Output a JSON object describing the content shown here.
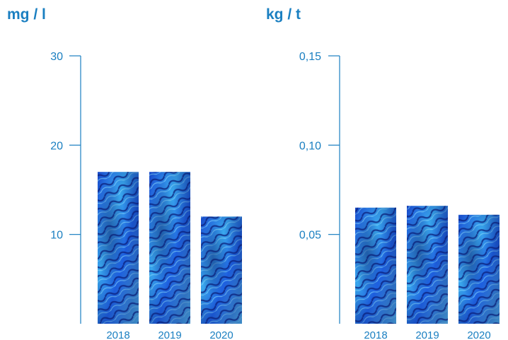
{
  "chart_data": [
    {
      "type": "bar",
      "unit_label": "mg / l",
      "categories": [
        "2018",
        "2019",
        "2020"
      ],
      "values": [
        17,
        17,
        12
      ],
      "ylim": [
        0,
        30
      ],
      "yticks": [
        10,
        20,
        30
      ],
      "ytick_labels": [
        "10",
        "20",
        "30"
      ],
      "bar_fill": "textured-blue",
      "colors": {
        "axis": "#1a7fc1",
        "bar_light": "#4fc3f7",
        "bar_dark": "#0d2b8a"
      }
    },
    {
      "type": "bar",
      "unit_label": "kg / t",
      "categories": [
        "2018",
        "2019",
        "2020"
      ],
      "values": [
        0.065,
        0.066,
        0.061
      ],
      "ylim": [
        0,
        0.15
      ],
      "yticks": [
        0.05,
        0.1,
        0.15
      ],
      "ytick_labels": [
        "0,05",
        "0,10",
        "0,15"
      ],
      "bar_fill": "textured-blue",
      "colors": {
        "axis": "#1a7fc1",
        "bar_light": "#4fc3f7",
        "bar_dark": "#0d2b8a"
      }
    }
  ]
}
